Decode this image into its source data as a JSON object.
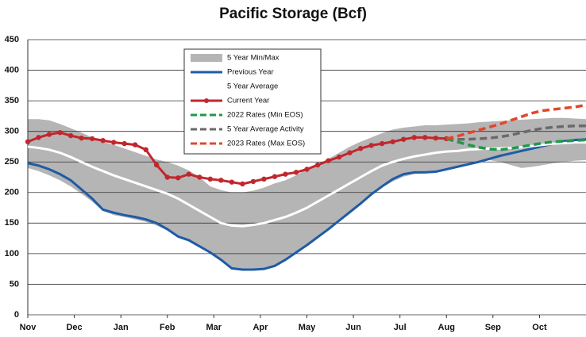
{
  "chart_data": {
    "type": "line",
    "title": "Pacific Storage (Bcf)",
    "x": [
      0,
      1,
      2,
      3,
      4,
      5,
      6,
      7,
      8,
      9,
      10,
      11,
      12,
      13,
      14,
      15,
      16,
      17,
      18,
      19,
      20,
      21,
      22,
      23,
      24,
      25,
      26,
      27,
      28,
      29,
      30,
      31,
      32,
      33,
      34,
      35,
      36,
      37,
      38,
      39,
      40,
      41,
      42,
      43,
      44,
      45,
      46,
      47,
      48,
      49,
      50,
      51,
      52
    ],
    "xlim": [
      0,
      52
    ],
    "xticks": [
      {
        "value": 0,
        "label": "Nov"
      },
      {
        "value": 4.33,
        "label": "Dec"
      },
      {
        "value": 8.67,
        "label": "Jan"
      },
      {
        "value": 13,
        "label": "Feb"
      },
      {
        "value": 17.33,
        "label": "Mar"
      },
      {
        "value": 21.67,
        "label": "Apr"
      },
      {
        "value": 26,
        "label": "May"
      },
      {
        "value": 30.33,
        "label": "Jun"
      },
      {
        "value": 34.67,
        "label": "Jul"
      },
      {
        "value": 39,
        "label": "Aug"
      },
      {
        "value": 43.33,
        "label": "Sep"
      },
      {
        "value": 47.67,
        "label": "Oct"
      }
    ],
    "ylim": [
      0,
      450
    ],
    "yticks": [
      0,
      50,
      100,
      150,
      200,
      250,
      300,
      350,
      400,
      450
    ],
    "grid": true,
    "band": {
      "name": "5 Year Min/Max",
      "color": "#b5b5b5",
      "upper": [
        320,
        320,
        318,
        312,
        305,
        298,
        290,
        283,
        278,
        272,
        266,
        260,
        254,
        250,
        244,
        236,
        225,
        210,
        204,
        200,
        200,
        203,
        208,
        215,
        220,
        228,
        238,
        246,
        255,
        265,
        275,
        283,
        290,
        297,
        303,
        306,
        308,
        310,
        310,
        311,
        312,
        313,
        315,
        316,
        317,
        318,
        319,
        320,
        321,
        322,
        322,
        321,
        320
      ],
      "lower": [
        240,
        235,
        228,
        220,
        210,
        198,
        185,
        170,
        163,
        160,
        156,
        152,
        146,
        138,
        126,
        120,
        110,
        100,
        88,
        76,
        74,
        74,
        75,
        80,
        88,
        100,
        112,
        125,
        138,
        152,
        165,
        180,
        195,
        208,
        218,
        226,
        230,
        232,
        234,
        237,
        241,
        245,
        250,
        253,
        250,
        245,
        240,
        242,
        245,
        248,
        250,
        252,
        253
      ]
    },
    "series": [
      {
        "name": "Previous Year",
        "color": "#1f5ba6",
        "values": [
          248,
          244,
          238,
          230,
          220,
          205,
          190,
          172,
          167,
          163,
          160,
          156,
          150,
          140,
          128,
          122,
          112,
          102,
          90,
          76,
          74,
          74,
          75,
          80,
          90,
          102,
          114,
          127,
          140,
          154,
          168,
          182,
          197,
          210,
          222,
          230,
          233,
          233,
          234,
          238,
          242,
          246,
          250,
          255,
          260,
          264,
          268,
          272,
          276,
          280,
          284,
          286,
          287
        ]
      },
      {
        "name": "5 Year Average",
        "color": "#ffffff",
        "values": [
          275,
          273,
          270,
          265,
          258,
          250,
          242,
          235,
          228,
          222,
          216,
          210,
          204,
          198,
          190,
          180,
          170,
          160,
          150,
          146,
          145,
          147,
          150,
          155,
          160,
          167,
          175,
          185,
          195,
          205,
          215,
          225,
          235,
          244,
          250,
          255,
          259,
          262,
          265,
          267,
          268,
          270,
          271,
          272,
          272,
          273,
          274,
          276,
          278,
          280,
          281,
          282,
          282
        ]
      },
      {
        "name": "Current Year",
        "color": "#c1272d",
        "marker": true,
        "values": [
          283,
          290,
          295,
          298,
          293,
          289,
          288,
          285,
          282,
          280,
          278,
          270,
          245,
          225,
          224,
          230,
          225,
          222,
          220,
          217,
          214,
          218,
          222,
          226,
          230,
          233,
          238,
          245,
          252,
          258,
          265,
          272,
          277,
          280,
          283,
          287,
          290,
          290,
          289,
          288,
          null,
          null,
          null,
          null,
          null,
          null,
          null,
          null,
          null,
          null,
          null,
          null,
          null
        ]
      },
      {
        "name": "2022 Rates (Min EOS)",
        "color": "#1e9a4a",
        "dashed": true,
        "values": [
          null,
          null,
          null,
          null,
          null,
          null,
          null,
          null,
          null,
          null,
          null,
          null,
          null,
          null,
          null,
          null,
          null,
          null,
          null,
          null,
          null,
          null,
          null,
          null,
          null,
          null,
          null,
          null,
          null,
          null,
          null,
          null,
          null,
          null,
          null,
          null,
          null,
          null,
          null,
          288,
          283,
          278,
          274,
          271,
          270,
          272,
          275,
          278,
          281,
          283,
          284,
          285,
          286
        ]
      },
      {
        "name": "5 Year Average Activity",
        "color": "#6a6a6a",
        "dashed": true,
        "values": [
          null,
          null,
          null,
          null,
          null,
          null,
          null,
          null,
          null,
          null,
          null,
          null,
          null,
          null,
          null,
          null,
          null,
          null,
          null,
          null,
          null,
          null,
          null,
          null,
          null,
          null,
          null,
          null,
          null,
          null,
          null,
          null,
          null,
          null,
          null,
          null,
          null,
          null,
          null,
          288,
          287,
          287,
          288,
          289,
          291,
          294,
          298,
          302,
          305,
          307,
          308,
          309,
          309
        ]
      },
      {
        "name": "2023 Rates (Max EOS)",
        "color": "#e2472b",
        "dashed": true,
        "values": [
          null,
          null,
          null,
          null,
          null,
          null,
          null,
          null,
          null,
          null,
          null,
          null,
          null,
          null,
          null,
          null,
          null,
          null,
          null,
          null,
          null,
          null,
          null,
          null,
          null,
          null,
          null,
          null,
          null,
          null,
          null,
          null,
          null,
          null,
          null,
          null,
          null,
          null,
          null,
          288,
          292,
          297,
          302,
          307,
          312,
          318,
          324,
          330,
          334,
          336,
          338,
          340,
          343
        ]
      }
    ]
  }
}
